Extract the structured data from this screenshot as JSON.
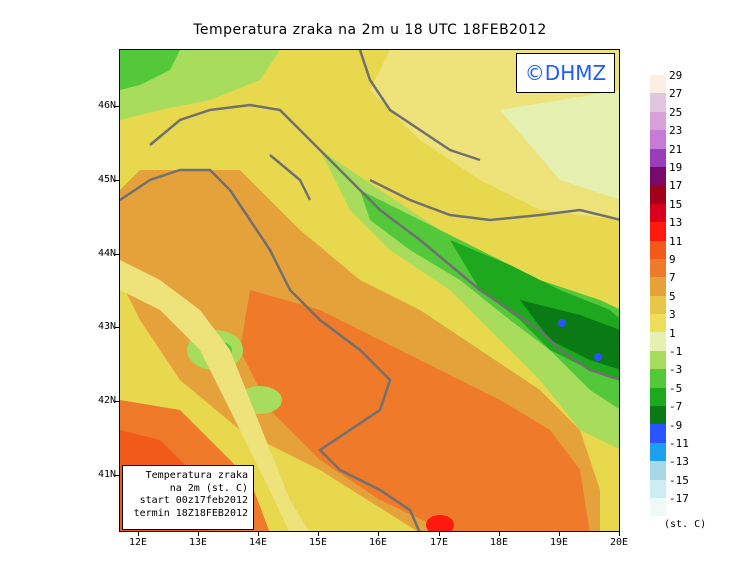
{
  "title": "Temperatura zraka na 2m u 18 UTC 18FEB2012",
  "logo": "©DHMZ",
  "legend_box": {
    "line1": "Temperatura zraka",
    "line2": "na 2m (st. C)",
    "line3": "start 00z17feb2012",
    "line4": "termin 18Z18FEB2012"
  },
  "lat_labels": [
    "46N",
    "45N",
    "44N",
    "43N",
    "42N",
    "41N"
  ],
  "lon_labels": [
    "12E",
    "13E",
    "14E",
    "15E",
    "16E",
    "17E",
    "18E",
    "19E",
    "20E"
  ],
  "colorbar": {
    "labels": [
      "29",
      "27",
      "25",
      "23",
      "21",
      "19",
      "17",
      "15",
      "13",
      "11",
      "9",
      "7",
      "5",
      "3",
      "1",
      "-1",
      "-3",
      "-5",
      "-7",
      "-9",
      "-11",
      "-13",
      "-15",
      "-17"
    ],
    "colors": [
      "#fbeee2",
      "#e0c6e0",
      "#d9a1da",
      "#c77ad6",
      "#9a3db8",
      "#7a0a6a",
      "#a0001a",
      "#d8001a",
      "#ff1a10",
      "#f25a1c",
      "#ee7a2a",
      "#e6a23a",
      "#e8c64a",
      "#eede5a",
      "#e6f0b0",
      "#a8dc5c",
      "#52c83a",
      "#1ea81e",
      "#0a7a14",
      "#2a54ff",
      "#1ea0f0",
      "#a8d8e8",
      "#cceef2",
      "#eefaf8"
    ],
    "unit": "(st. C)"
  }
}
